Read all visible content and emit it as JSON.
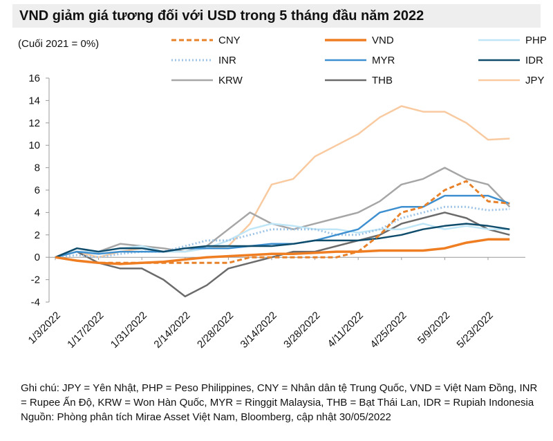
{
  "chart_data": {
    "type": "line",
    "title": "VND giảm giá tương đối với USD trong 5 tháng đầu năm 2022",
    "subtitle": "(Cuối 2021 = 0%)",
    "note": "Ghi chú: JPY = Yên Nhật, PHP = Peso Philippines, CNY = Nhân dân tệ Trung Quốc, VND = Việt Nam Đồng, INR = Rupee Ấn Độ, KRW = Won Hàn Quốc, MYR = Ringgit Malaysia, THB = Bạt Thái Lan, IDR = Rupiah Indonesia",
    "source": "Nguồn: Phòng phân tích Mirae Asset Việt Nam, Bloomberg, cập nhật 30/05/2022",
    "x": [
      "1/3/2022",
      "1/10/2022",
      "1/17/2022",
      "1/24/2022",
      "1/31/2022",
      "2/7/2022",
      "2/14/2022",
      "2/21/2022",
      "2/28/2022",
      "3/7/2022",
      "3/14/2022",
      "3/21/2022",
      "3/28/2022",
      "4/4/2022",
      "4/11/2022",
      "4/18/2022",
      "4/25/2022",
      "5/2/2022",
      "5/9/2022",
      "5/16/2022",
      "5/23/2022",
      "5/30/2022"
    ],
    "xticks": [
      "1/3/2022",
      "1/17/2022",
      "1/31/2022",
      "2/14/2022",
      "2/28/2022",
      "3/14/2022",
      "3/28/2022",
      "4/11/2022",
      "4/25/2022",
      "5/9/2022",
      "5/23/2022"
    ],
    "ylim": [
      -4,
      16
    ],
    "yticks": [
      -4,
      -2,
      0,
      2,
      4,
      6,
      8,
      10,
      12,
      14,
      16
    ],
    "series": [
      {
        "name": "JPY",
        "color": "#f9caa0",
        "style": "solid",
        "values": [
          0,
          0.5,
          0,
          0.5,
          0.8,
          0.5,
          0.5,
          0.8,
          1,
          3,
          6.5,
          7,
          9,
          10,
          11,
          12.5,
          13.5,
          13,
          13,
          12,
          10.5,
          10.6
        ]
      },
      {
        "name": "KRW",
        "color": "#a6a6a6",
        "style": "solid",
        "values": [
          0,
          0.5,
          0.5,
          1.2,
          1,
          0.8,
          0.5,
          1,
          2.5,
          4,
          3,
          2.5,
          3,
          3.5,
          4,
          5,
          6.5,
          7,
          8,
          7,
          6.5,
          4.5
        ]
      },
      {
        "name": "THB",
        "color": "#6b6b6b",
        "style": "solid",
        "values": [
          0,
          0.5,
          -0.5,
          -1,
          -1,
          -2,
          -3.5,
          -2.5,
          -1,
          -0.5,
          0,
          0.5,
          0.5,
          1,
          1.5,
          2,
          3,
          3.5,
          4,
          3.5,
          2.5,
          2
        ]
      },
      {
        "name": "PHP",
        "color": "#bfe6f7",
        "style": "solid",
        "values": [
          0,
          0.5,
          0.5,
          0.8,
          1,
          0.5,
          0.5,
          0.8,
          1.5,
          2.5,
          3,
          2.8,
          2.5,
          2.5,
          2.2,
          2.5,
          2.5,
          3,
          2.5,
          2.8,
          2.5,
          2.5
        ]
      },
      {
        "name": "INR",
        "color": "#9dc3e6",
        "style": "dotted",
        "values": [
          0,
          0.2,
          0,
          0.3,
          0.5,
          0.5,
          1,
          1.5,
          1.5,
          2,
          2.5,
          2.5,
          2.5,
          2,
          2,
          2.5,
          3.5,
          4,
          4.5,
          4.5,
          4.2,
          4.3
        ]
      },
      {
        "name": "MYR",
        "color": "#3d8fcf",
        "style": "solid",
        "values": [
          0,
          0.5,
          0.3,
          0.5,
          0.5,
          0.5,
          0.8,
          0.8,
          0.8,
          1,
          1.2,
          1.2,
          1.5,
          2,
          2.5,
          4,
          4.5,
          4.5,
          5.5,
          5.5,
          5.5,
          4.8
        ]
      },
      {
        "name": "IDR",
        "color": "#0f4c6b",
        "style": "solid",
        "values": [
          0,
          0.8,
          0.5,
          0.8,
          0.8,
          0.5,
          0.8,
          1,
          1,
          1,
          1,
          1.2,
          1.5,
          1.5,
          1.5,
          1.7,
          2,
          2.5,
          2.8,
          3,
          2.8,
          2.5
        ]
      },
      {
        "name": "CNY",
        "color": "#e8822a",
        "style": "dashed",
        "values": [
          0,
          -0.3,
          -0.5,
          -0.5,
          -0.5,
          -0.5,
          -0.5,
          -0.5,
          -0.5,
          0,
          0,
          0,
          0,
          0,
          0.5,
          2,
          4,
          4.5,
          6,
          6.8,
          5,
          4.8
        ]
      },
      {
        "name": "VND",
        "color": "#ef7d22",
        "style": "thick",
        "values": [
          0,
          -0.3,
          -0.5,
          -0.6,
          -0.5,
          -0.4,
          -0.2,
          0,
          0.1,
          0.2,
          0.3,
          0.3,
          0.4,
          0.5,
          0.5,
          0.6,
          0.6,
          0.6,
          0.8,
          1.3,
          1.6,
          1.6
        ]
      }
    ],
    "legend_order": [
      "CNY",
      "VND",
      "PHP",
      "INR",
      "MYR",
      "IDR",
      "KRW",
      "THB",
      "JPY"
    ]
  }
}
